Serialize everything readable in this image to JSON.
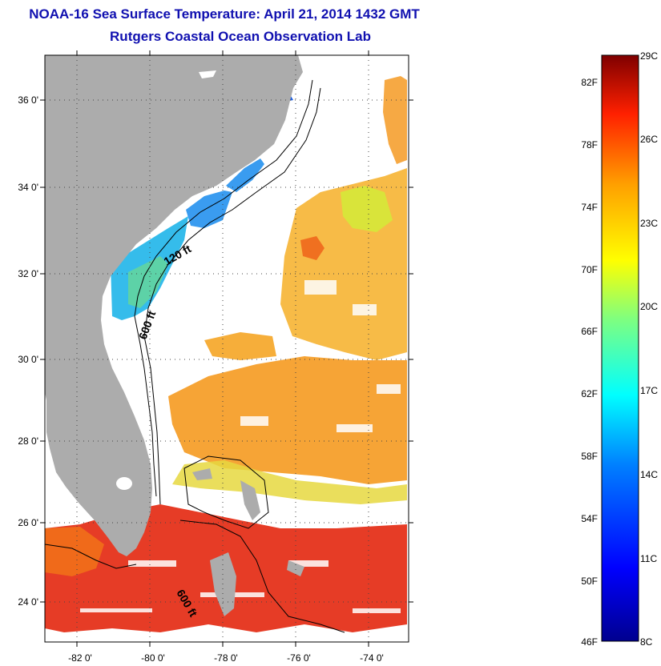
{
  "header": {
    "title": "NOAA-16 Sea Surface Temperature:  April 21, 2014 1432 GMT",
    "subtitle": "Rutgers Coastal Ocean Observation Lab"
  },
  "map": {
    "lon_range": [
      -83.0,
      -72.6
    ],
    "lat_range": [
      23.0,
      37.1
    ],
    "lon_ticks": [
      "-82 0'",
      "-80 0'",
      "-78 0'",
      "-76 0'",
      "-74 0'"
    ],
    "lat_ticks": [
      "24 0'",
      "26 0'",
      "28 0'",
      "30 0'",
      "32 0'",
      "34 0'",
      "36 0'"
    ],
    "land_color": "#acacac",
    "isobath_labels": [
      "120 ft",
      "600 ft",
      "600 ft"
    ]
  },
  "colorbar": {
    "colors": [
      "#00008f",
      "#0000ff",
      "#007fff",
      "#00ffff",
      "#7fff7f",
      "#ffff00",
      "#ff7f00",
      "#ff0000",
      "#7f0000"
    ],
    "fahrenheit_labels": [
      "82F",
      "78F",
      "74F",
      "70F",
      "66F",
      "62F",
      "58F",
      "54F",
      "50F",
      "46F"
    ],
    "celsius_labels": [
      "29C",
      "26C",
      "23C",
      "20C",
      "17C",
      "14C",
      "11C",
      "8C"
    ]
  },
  "sst_regions": [
    {
      "name": "sc-ga-shelf",
      "color": "#2ab8ea"
    },
    {
      "name": "nc-shelf",
      "color": "#3a9cf0"
    },
    {
      "name": "mid-atlantic-warm",
      "color": "#f6b433"
    },
    {
      "name": "gulf-stream-band",
      "color": "#f59a20"
    },
    {
      "name": "sargasso-warm",
      "color": "#f48a1e"
    },
    {
      "name": "yellow-patch",
      "color": "#d9e43a"
    },
    {
      "name": "south-hot",
      "color": "#e5311a"
    },
    {
      "name": "fl-keys",
      "color": "#f06a1a"
    }
  ]
}
